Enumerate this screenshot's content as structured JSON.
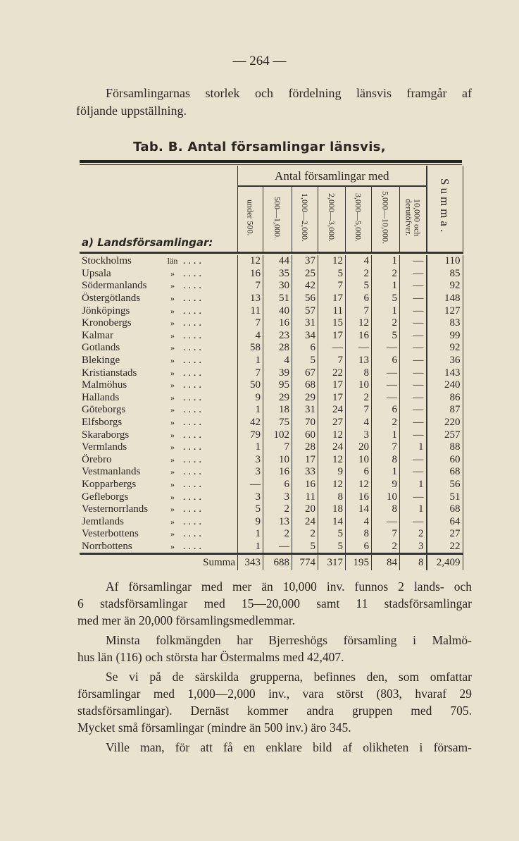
{
  "page_number": "— 264 —",
  "intro": [
    "Församlingarnas storlek och fördelning länsvis framgår af",
    "följande uppställning."
  ],
  "table_title": "Tab. B.  Antal församlingar länsvis,",
  "table": {
    "group_header": "Antal församlingar med",
    "column_headers": [
      "under 500.",
      "500—1,000.",
      "1,000—2,000.",
      "2,000—3,000.",
      "3,000—5,000.",
      "5,000—10,000.",
      "10,000 och\nderutöfver."
    ],
    "summa_header": "Summa.",
    "section_label": "a) Landsförsamlingar:",
    "rows": [
      {
        "name": "Stockholms",
        "suffix": "län",
        "values": [
          "12",
          "44",
          "37",
          "12",
          "4",
          "1",
          "—",
          "110"
        ]
      },
      {
        "name": "Upsala",
        "suffix": "»",
        "values": [
          "16",
          "35",
          "25",
          "5",
          "2",
          "2",
          "—",
          "85"
        ]
      },
      {
        "name": "Södermanlands",
        "suffix": "»",
        "values": [
          "7",
          "30",
          "42",
          "7",
          "5",
          "1",
          "—",
          "92"
        ]
      },
      {
        "name": "Östergötlands",
        "suffix": "»",
        "values": [
          "13",
          "51",
          "56",
          "17",
          "6",
          "5",
          "—",
          "148"
        ]
      },
      {
        "name": "Jönköpings",
        "suffix": "»",
        "values": [
          "11",
          "40",
          "57",
          "11",
          "7",
          "1",
          "—",
          "127"
        ]
      },
      {
        "name": "Kronobergs",
        "suffix": "»",
        "values": [
          "7",
          "16",
          "31",
          "15",
          "12",
          "2",
          "—",
          "83"
        ]
      },
      {
        "name": "Kalmar",
        "suffix": "»",
        "values": [
          "4",
          "23",
          "34",
          "17",
          "16",
          "5",
          "—",
          "99"
        ]
      },
      {
        "name": "Gotlands",
        "suffix": "»",
        "values": [
          "58",
          "28",
          "6",
          "—",
          "—",
          "—",
          "—",
          "92"
        ]
      },
      {
        "name": "Blekinge",
        "suffix": "»",
        "values": [
          "1",
          "4",
          "5",
          "7",
          "13",
          "6",
          "—",
          "36"
        ]
      },
      {
        "name": "Kristianstads",
        "suffix": "»",
        "values": [
          "7",
          "39",
          "67",
          "22",
          "8",
          "—",
          "—",
          "143"
        ]
      },
      {
        "name": "Malmöhus",
        "suffix": "»",
        "values": [
          "50",
          "95",
          "68",
          "17",
          "10",
          "—",
          "—",
          "240"
        ]
      },
      {
        "name": "Hallands",
        "suffix": "»",
        "values": [
          "9",
          "29",
          "29",
          "17",
          "2",
          "—",
          "—",
          "86"
        ]
      },
      {
        "name": "Göteborgs",
        "suffix": "»",
        "values": [
          "1",
          "18",
          "31",
          "24",
          "7",
          "6",
          "—",
          "87"
        ]
      },
      {
        "name": "Elfsborgs",
        "suffix": "»",
        "values": [
          "42",
          "75",
          "70",
          "27",
          "4",
          "2",
          "—",
          "220"
        ]
      },
      {
        "name": "Skaraborgs",
        "suffix": "»",
        "values": [
          "79",
          "102",
          "60",
          "12",
          "3",
          "1",
          "—",
          "257"
        ]
      },
      {
        "name": "Vermlands",
        "suffix": "»",
        "values": [
          "1",
          "7",
          "28",
          "24",
          "20",
          "7",
          "1",
          "88"
        ]
      },
      {
        "name": "Örebro",
        "suffix": "»",
        "values": [
          "3",
          "10",
          "17",
          "12",
          "10",
          "8",
          "—",
          "60"
        ]
      },
      {
        "name": "Vestmanlands",
        "suffix": "»",
        "values": [
          "3",
          "16",
          "33",
          "9",
          "6",
          "1",
          "—",
          "68"
        ]
      },
      {
        "name": "Kopparbergs",
        "suffix": "»",
        "values": [
          "—",
          "6",
          "16",
          "12",
          "12",
          "9",
          "1",
          "56"
        ]
      },
      {
        "name": "Gefleborgs",
        "suffix": "»",
        "values": [
          "3",
          "3",
          "11",
          "8",
          "16",
          "10",
          "—",
          "51"
        ]
      },
      {
        "name": "Vesternorrlands",
        "suffix": "»",
        "values": [
          "5",
          "2",
          "20",
          "18",
          "14",
          "8",
          "1",
          "68"
        ]
      },
      {
        "name": "Jemtlands",
        "suffix": "»",
        "values": [
          "9",
          "13",
          "24",
          "14",
          "4",
          "—",
          "—",
          "64"
        ]
      },
      {
        "name": "Vesterbottens",
        "suffix": "»",
        "values": [
          "1",
          "2",
          "2",
          "5",
          "8",
          "7",
          "2",
          "27"
        ]
      },
      {
        "name": "Norrbottens",
        "suffix": "»",
        "values": [
          "1",
          "—",
          "5",
          "5",
          "6",
          "2",
          "3",
          "22"
        ]
      }
    ],
    "total": {
      "label": "Summa",
      "values": [
        "343",
        "688",
        "774",
        "317",
        "195",
        "84",
        "8",
        "2,409"
      ]
    }
  },
  "paragraphs": [
    [
      "Af församlingar med mer än 10,000 inv. funnos 2 lands- och",
      "6 stadsförsamlingar med 15—20,000 samt 11 stadsförsamlingar",
      "med mer än 20,000 församlingsmedlemmar."
    ],
    [
      "Minsta folkmängden har Bjerreshögs församling i Malmö-",
      "hus län (116) och största har Östermalms med 42,407."
    ],
    [
      "Se vi på de särskilda grupperna, befinnes den, som omfattar",
      "församlingar med 1,000—2,000 inv., vara störst (803, hvaraf 29",
      "stadsförsamlingar).  Dernäst kommer andra gruppen med 705.",
      "Mycket små församlingar (mindre än 500 inv.) äro 345."
    ],
    [
      "Ville man, för att få en enklare bild af olikheten i försam-"
    ]
  ]
}
